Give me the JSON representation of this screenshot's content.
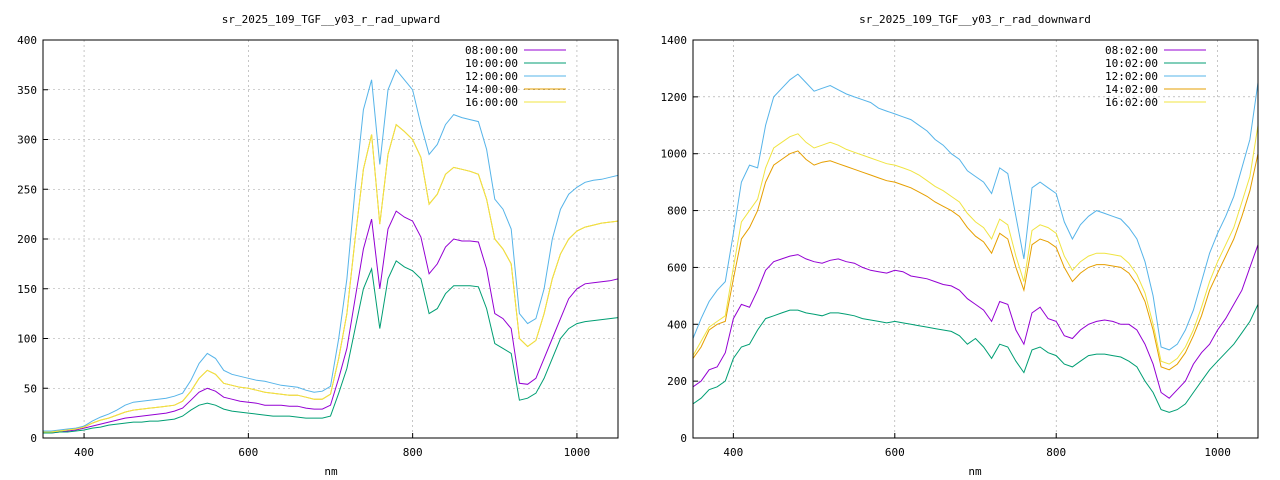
{
  "chart_data": [
    {
      "type": "line",
      "title": "sr_2025_109_TGF__y03_r_rad_upward",
      "xlabel": "nm",
      "ylabel": "",
      "xlim": [
        350,
        1050
      ],
      "ylim": [
        0,
        400
      ],
      "xticks": [
        400,
        600,
        800,
        1000
      ],
      "yticks": [
        0,
        50,
        100,
        150,
        200,
        250,
        300,
        350,
        400
      ],
      "grid": true,
      "legend_position": "top-right",
      "x": [
        350,
        360,
        370,
        380,
        390,
        400,
        410,
        420,
        430,
        440,
        450,
        460,
        470,
        480,
        490,
        500,
        510,
        520,
        530,
        540,
        550,
        560,
        570,
        580,
        590,
        600,
        610,
        620,
        630,
        640,
        650,
        660,
        670,
        680,
        690,
        700,
        710,
        720,
        730,
        740,
        750,
        760,
        770,
        780,
        790,
        800,
        810,
        820,
        830,
        840,
        850,
        860,
        870,
        880,
        890,
        900,
        910,
        920,
        930,
        940,
        950,
        960,
        970,
        980,
        990,
        1000,
        1010,
        1020,
        1030,
        1040,
        1050
      ],
      "series": [
        {
          "name": "08:00:00",
          "color": "#9400d3",
          "values": [
            5,
            5,
            6,
            7,
            8,
            10,
            12,
            14,
            16,
            18,
            20,
            21,
            22,
            23,
            24,
            25,
            27,
            30,
            38,
            46,
            50,
            47,
            41,
            39,
            37,
            36,
            35,
            33,
            33,
            33,
            32,
            32,
            30,
            29,
            29,
            33,
            60,
            90,
            140,
            190,
            220,
            150,
            210,
            228,
            222,
            218,
            202,
            165,
            175,
            192,
            200,
            198,
            198,
            197,
            170,
            125,
            120,
            110,
            55,
            54,
            60,
            80,
            100,
            120,
            140,
            150,
            155,
            156,
            157,
            158,
            160
          ]
        },
        {
          "name": "10:00:00",
          "color": "#009e73",
          "values": [
            5,
            5,
            6,
            6,
            7,
            8,
            10,
            11,
            13,
            14,
            15,
            16,
            16,
            17,
            17,
            18,
            19,
            22,
            28,
            33,
            35,
            33,
            29,
            27,
            26,
            25,
            24,
            23,
            22,
            22,
            22,
            21,
            20,
            20,
            20,
            22,
            45,
            70,
            110,
            150,
            170,
            110,
            160,
            178,
            172,
            168,
            160,
            125,
            130,
            145,
            153,
            153,
            153,
            152,
            130,
            95,
            90,
            85,
            38,
            40,
            45,
            60,
            80,
            100,
            110,
            115,
            117,
            118,
            119,
            120,
            121
          ]
        },
        {
          "name": "12:00:00",
          "color": "#56b4e9",
          "values": [
            7,
            7,
            8,
            9,
            10,
            12,
            17,
            21,
            24,
            28,
            33,
            36,
            37,
            38,
            39,
            40,
            42,
            45,
            58,
            75,
            85,
            80,
            68,
            64,
            62,
            60,
            58,
            57,
            55,
            53,
            52,
            51,
            48,
            46,
            47,
            52,
            100,
            160,
            250,
            330,
            360,
            275,
            350,
            370,
            360,
            350,
            315,
            285,
            295,
            315,
            325,
            322,
            320,
            318,
            290,
            240,
            230,
            210,
            125,
            115,
            120,
            150,
            200,
            230,
            245,
            252,
            257,
            259,
            260,
            262,
            264
          ]
        },
        {
          "name": "14:00:00",
          "color": "#e69f00",
          "values": [
            6,
            6,
            7,
            8,
            9,
            11,
            15,
            18,
            20,
            23,
            26,
            28,
            29,
            30,
            31,
            32,
            33,
            37,
            47,
            60,
            68,
            64,
            55,
            53,
            51,
            50,
            48,
            46,
            45,
            44,
            43,
            43,
            41,
            39,
            39,
            44,
            80,
            125,
            200,
            270,
            305,
            215,
            285,
            315,
            308,
            300,
            282,
            235,
            245,
            265,
            272,
            270,
            268,
            265,
            240,
            200,
            190,
            175,
            100,
            92,
            98,
            125,
            160,
            185,
            200,
            208,
            212,
            214,
            216,
            217,
            218
          ]
        },
        {
          "name": "16:00:00",
          "color": "#f0e442",
          "values": [
            6,
            6,
            7,
            8,
            9,
            11,
            15,
            18,
            20,
            23,
            26,
            28,
            29,
            30,
            31,
            32,
            33,
            37,
            47,
            60,
            68,
            64,
            55,
            53,
            51,
            50,
            48,
            46,
            45,
            44,
            43,
            43,
            41,
            39,
            39,
            44,
            80,
            125,
            200,
            270,
            305,
            215,
            285,
            315,
            308,
            300,
            282,
            235,
            245,
            265,
            272,
            270,
            268,
            265,
            240,
            200,
            190,
            175,
            100,
            92,
            98,
            125,
            160,
            185,
            200,
            208,
            212,
            214,
            216,
            217,
            218
          ]
        }
      ]
    },
    {
      "type": "line",
      "title": "sr_2025_109_TGF__y03_r_rad_downward",
      "xlabel": "nm",
      "ylabel": "",
      "xlim": [
        350,
        1050
      ],
      "ylim": [
        0,
        1400
      ],
      "xticks": [
        400,
        600,
        800,
        1000
      ],
      "yticks": [
        0,
        200,
        400,
        600,
        800,
        1000,
        1200,
        1400
      ],
      "grid": true,
      "legend_position": "top-right",
      "x": [
        350,
        360,
        370,
        380,
        390,
        400,
        410,
        420,
        430,
        440,
        450,
        460,
        470,
        480,
        490,
        500,
        510,
        520,
        530,
        540,
        550,
        560,
        570,
        580,
        590,
        600,
        610,
        620,
        630,
        640,
        650,
        660,
        670,
        680,
        690,
        700,
        710,
        720,
        730,
        740,
        750,
        760,
        770,
        780,
        790,
        800,
        810,
        820,
        830,
        840,
        850,
        860,
        870,
        880,
        890,
        900,
        910,
        920,
        930,
        940,
        950,
        960,
        970,
        980,
        990,
        1000,
        1010,
        1020,
        1030,
        1040,
        1050
      ],
      "series": [
        {
          "name": "08:02:00",
          "color": "#9400d3",
          "values": [
            180,
            200,
            240,
            250,
            300,
            420,
            470,
            460,
            520,
            590,
            620,
            630,
            640,
            645,
            630,
            620,
            615,
            625,
            630,
            620,
            615,
            600,
            590,
            585,
            580,
            590,
            585,
            570,
            565,
            560,
            550,
            540,
            535,
            520,
            490,
            470,
            450,
            410,
            480,
            470,
            380,
            330,
            440,
            460,
            420,
            410,
            360,
            350,
            380,
            400,
            410,
            415,
            410,
            400,
            400,
            380,
            330,
            260,
            160,
            140,
            170,
            200,
            260,
            300,
            330,
            380,
            420,
            470,
            520,
            600,
            680
          ]
        },
        {
          "name": "10:02:00",
          "color": "#009e73",
          "values": [
            120,
            140,
            170,
            180,
            200,
            280,
            320,
            330,
            380,
            420,
            430,
            440,
            450,
            450,
            440,
            435,
            430,
            440,
            440,
            435,
            430,
            420,
            415,
            410,
            405,
            410,
            405,
            400,
            395,
            390,
            385,
            380,
            375,
            360,
            330,
            350,
            320,
            280,
            330,
            320,
            270,
            230,
            310,
            320,
            300,
            290,
            260,
            250,
            270,
            290,
            295,
            295,
            290,
            285,
            270,
            250,
            200,
            160,
            100,
            90,
            100,
            120,
            160,
            200,
            240,
            270,
            300,
            330,
            370,
            410,
            470
          ]
        },
        {
          "name": "12:02:00",
          "color": "#56b4e9",
          "values": [
            350,
            420,
            480,
            520,
            550,
            720,
            900,
            960,
            950,
            1100,
            1200,
            1230,
            1260,
            1280,
            1250,
            1220,
            1230,
            1240,
            1225,
            1210,
            1200,
            1190,
            1180,
            1160,
            1150,
            1140,
            1130,
            1120,
            1100,
            1080,
            1050,
            1030,
            1000,
            980,
            940,
            920,
            900,
            860,
            950,
            930,
            780,
            630,
            880,
            900,
            880,
            860,
            760,
            700,
            750,
            780,
            800,
            790,
            780,
            770,
            740,
            700,
            620,
            500,
            320,
            310,
            330,
            380,
            450,
            550,
            650,
            720,
            780,
            850,
            950,
            1050,
            1250
          ]
        },
        {
          "name": "14:02:00",
          "color": "#e69f00",
          "values": [
            280,
            320,
            380,
            400,
            410,
            560,
            700,
            740,
            800,
            900,
            960,
            980,
            1000,
            1010,
            980,
            960,
            970,
            975,
            965,
            955,
            945,
            935,
            925,
            915,
            905,
            900,
            890,
            880,
            865,
            850,
            830,
            815,
            800,
            780,
            740,
            710,
            690,
            650,
            720,
            700,
            600,
            520,
            680,
            700,
            690,
            670,
            600,
            550,
            580,
            600,
            610,
            610,
            605,
            600,
            580,
            540,
            480,
            380,
            250,
            240,
            260,
            300,
            360,
            430,
            520,
            580,
            640,
            700,
            780,
            870,
            1000
          ]
        },
        {
          "name": "16:02:00",
          "color": "#f0e442",
          "values": [
            290,
            340,
            390,
            410,
            430,
            600,
            760,
            800,
            840,
            950,
            1020,
            1040,
            1060,
            1070,
            1040,
            1020,
            1030,
            1040,
            1030,
            1015,
            1005,
            995,
            985,
            975,
            965,
            960,
            950,
            940,
            925,
            905,
            885,
            870,
            850,
            830,
            790,
            760,
            740,
            700,
            770,
            750,
            640,
            550,
            730,
            750,
            740,
            720,
            640,
            590,
            620,
            640,
            650,
            650,
            645,
            640,
            615,
            575,
            510,
            400,
            270,
            260,
            280,
            320,
            380,
            460,
            550,
            620,
            680,
            740,
            830,
            920,
            1100
          ]
        }
      ]
    }
  ]
}
